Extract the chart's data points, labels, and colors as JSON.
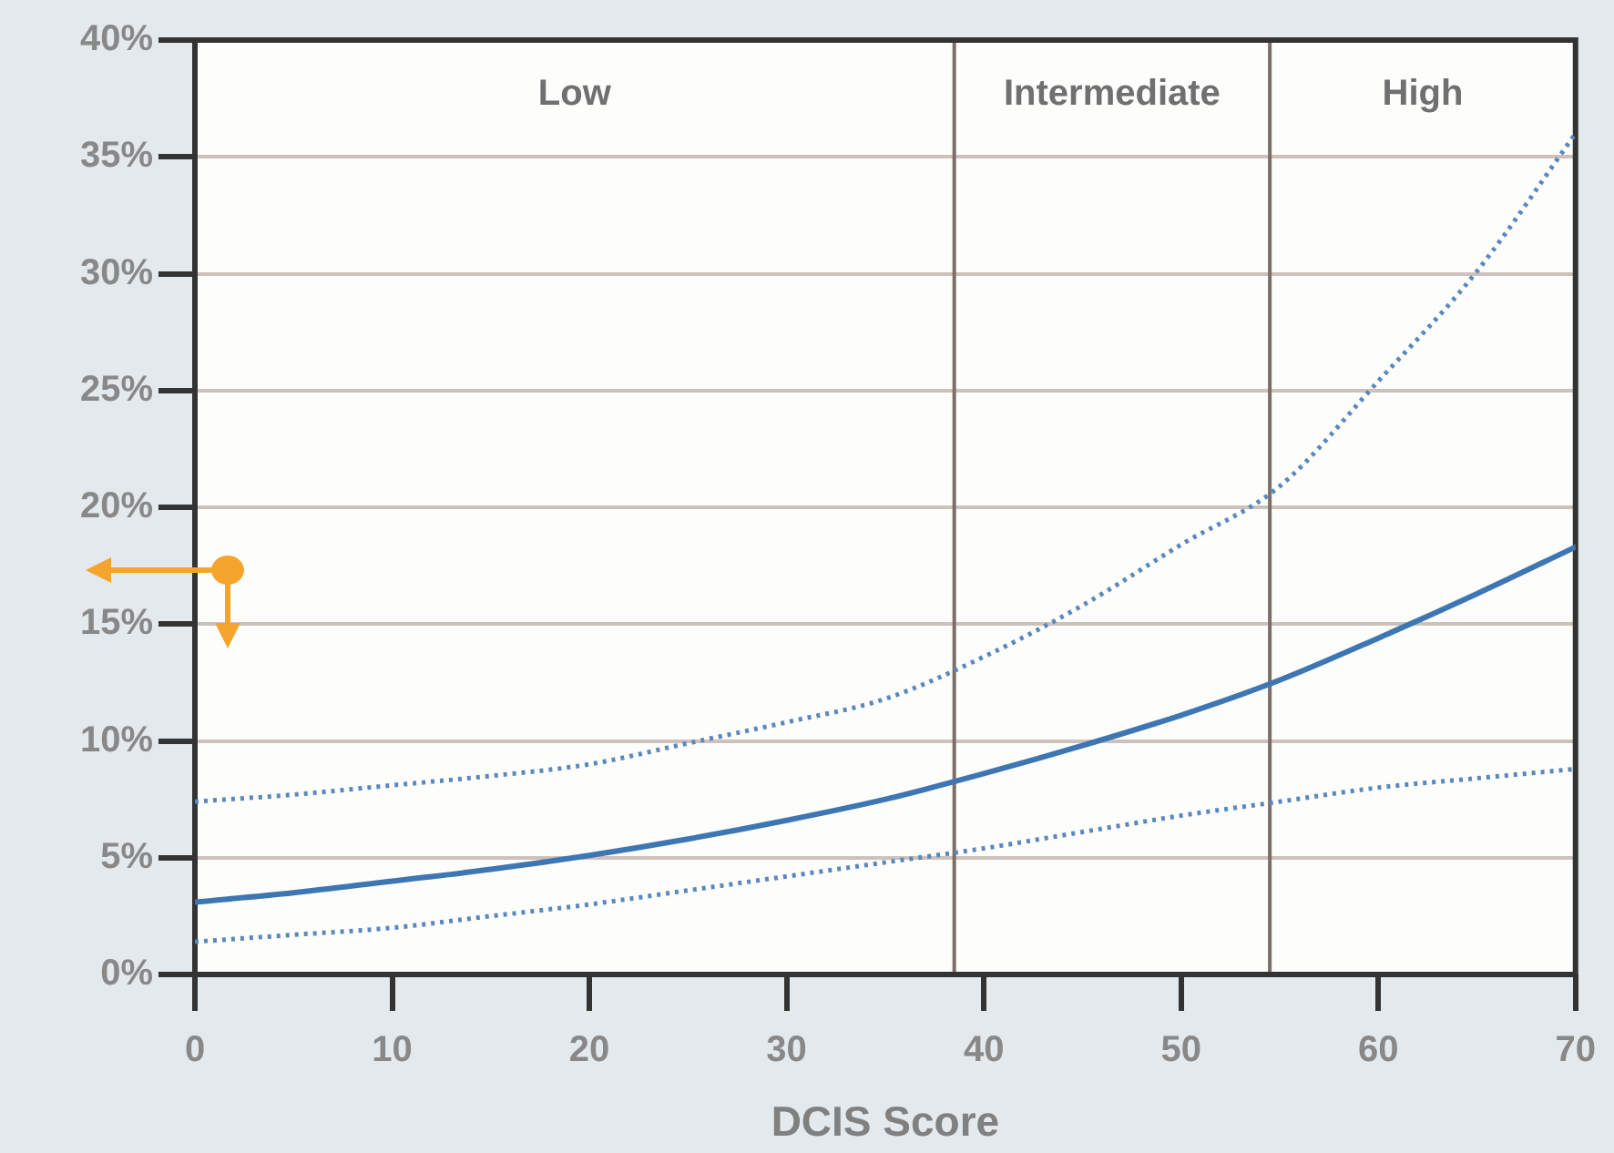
{
  "chart_data": {
    "type": "line",
    "xlabel": "DCIS Score",
    "x": [
      0,
      5,
      10,
      15,
      20,
      25,
      30,
      35,
      40,
      45,
      50,
      55,
      60,
      65,
      70
    ],
    "series": [
      {
        "color": "#5a88bc",
        "line_style": "dotted",
        "values": [
          7.4,
          7.7,
          8.1,
          8.5,
          9.0,
          9.9,
          10.8,
          11.8,
          13.6,
          15.8,
          18.4,
          20.9,
          25.4,
          30.1,
          36.0
        ]
      },
      {
        "color": "#3d76b3",
        "line_style": "solid",
        "values": [
          3.1,
          3.5,
          4.0,
          4.5,
          5.1,
          5.8,
          6.6,
          7.5,
          8.6,
          9.8,
          11.1,
          12.6,
          14.4,
          16.3,
          18.3
        ]
      },
      {
        "color": "#5a88bc",
        "line_style": "dotted",
        "values": [
          1.4,
          1.7,
          2.0,
          2.5,
          3.0,
          3.6,
          4.2,
          4.8,
          5.4,
          6.1,
          6.8,
          7.4,
          8.0,
          8.4,
          8.8
        ]
      }
    ],
    "xlim": [
      0,
      70
    ],
    "xticks": [
      0,
      10,
      20,
      30,
      40,
      50,
      60,
      70
    ],
    "ylim": [
      0,
      40
    ],
    "yticks": [
      {
        "value": 0,
        "label": "0%"
      },
      {
        "value": 5,
        "label": "5%"
      },
      {
        "value": 10,
        "label": "10%"
      },
      {
        "value": 15,
        "label": "15%"
      },
      {
        "value": 20,
        "label": "20%"
      },
      {
        "value": 25,
        "label": "25%"
      },
      {
        "value": 30,
        "label": "30%"
      },
      {
        "value": 35,
        "label": "35%"
      },
      {
        "value": 40,
        "label": "40%"
      }
    ],
    "grid": "y",
    "marker": "none",
    "ref_lines": [
      {
        "axis": "x",
        "value": 38.5,
        "color": "#7d6d69"
      },
      {
        "axis": "x",
        "value": 54.5,
        "color": "#7d6d69"
      }
    ],
    "annotations": [
      "Low",
      "Intermediate",
      "High"
    ]
  }
}
